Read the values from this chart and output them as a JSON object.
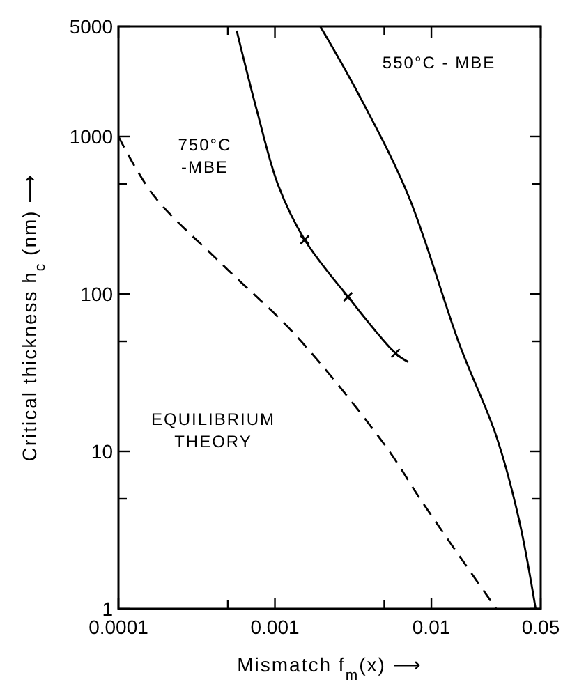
{
  "chart_data": {
    "type": "line",
    "xlabel": "Mismatch f$_{m}$(x) ⟶",
    "ylabel": "Critical thickness h$_{c}$ (nm) ⟶",
    "log": "xy",
    "grid": false,
    "xlim": [
      0.0001,
      0.05
    ],
    "xticks": [
      0.0001,
      {
        "value": 0.0005,
        "label": null
      },
      0.001,
      {
        "value": 0.005,
        "label": null
      },
      0.01,
      0.05
    ],
    "ylim": [
      1,
      5000
    ],
    "yticks": [
      1,
      {
        "value": 5,
        "label": null
      },
      10,
      {
        "value": 50,
        "label": null
      },
      100,
      {
        "value": 500,
        "label": null
      },
      1000,
      5000
    ],
    "series": [
      {
        "line_style": "dashed",
        "marker": "none",
        "color": "#000000",
        "x": [
          0.0001,
          0.000167,
          0.000464,
          0.00135,
          0.0051,
          0.0087,
          0.026
        ],
        "values": [
          1000,
          425,
          153,
          55,
          10.8,
          4.8,
          1
        ]
      },
      {
        "line_style": "solid",
        "marker": "none",
        "color": "#000000",
        "x": [
          0.00057,
          0.00077,
          0.00105,
          0.00155,
          0.00293,
          0.0059,
          0.0071
        ],
        "values": [
          4700,
          1440,
          490,
          221,
          96,
          42,
          37
        ]
      },
      {
        "line_style": "solid",
        "marker": "none",
        "color": "#000000",
        "x": [
          0.00195,
          0.0034,
          0.0071,
          0.0151,
          0.026,
          0.0363,
          0.0464
        ],
        "values": [
          5000,
          1880,
          425,
          48,
          12.5,
          3.7,
          1
        ]
      },
      {
        "type": "scatter",
        "marker": "cross",
        "color": "#000000",
        "x": [
          0.00155,
          0.00293,
          0.0059
        ],
        "values": [
          221,
          96,
          42
        ]
      }
    ],
    "annotations": [
      "550°C - MBE",
      "750°C\n-MBE",
      "EQUILIBRIUM\nTHEORY"
    ]
  }
}
